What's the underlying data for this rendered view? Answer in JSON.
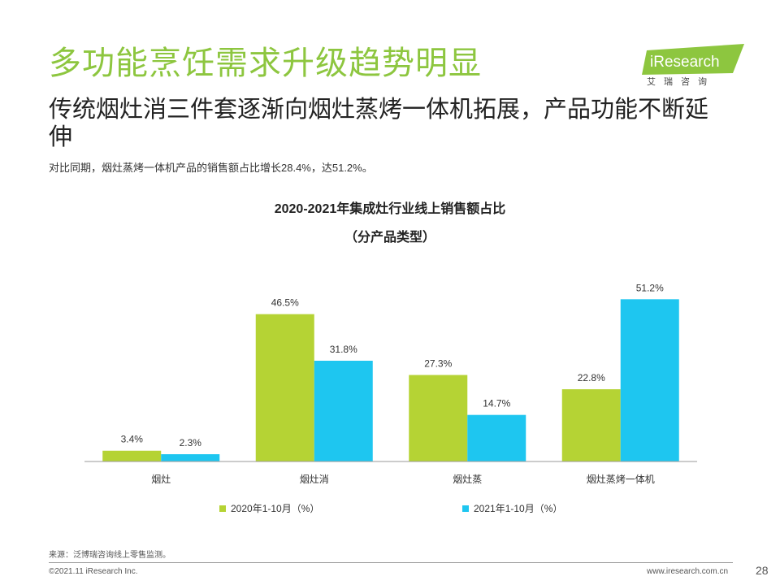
{
  "page": {
    "title": "多功能烹饪需求升级趋势明显",
    "subtitle": "传统烟灶消三件套逐渐向烟灶蒸烤一体机拓展，产品功能不断延伸",
    "description": "对比同期，烟灶蒸烤一体机产品的销售额占比增长28.4%，达51.2%。",
    "source": "来源：泛博瑞咨询线上零售监测。",
    "copyright": "©2021.11 iResearch Inc.",
    "website": "www.iresearch.com.cn",
    "page_number": "28"
  },
  "logo": {
    "brand": "iResearch",
    "tagline": "艾瑞咨询",
    "color": "#8dc63f"
  },
  "chart_data": {
    "type": "bar",
    "title": "2020-2021年集成灶行业线上销售额占比",
    "subtitle": "（分产品类型）",
    "categories": [
      "烟灶",
      "烟灶消",
      "烟灶蒸",
      "烟灶蒸烤一体机"
    ],
    "series": [
      {
        "name": "2020年1-10月（%）",
        "values": [
          3.4,
          46.5,
          27.3,
          22.8
        ],
        "labels": [
          "3.4%",
          "46.5%",
          "27.3%",
          "22.8%"
        ],
        "color": "#b5d334"
      },
      {
        "name": "2021年1-10月（%）",
        "values": [
          2.3,
          31.8,
          14.7,
          51.2
        ],
        "labels": [
          "2.3%",
          "31.8%",
          "14.7%",
          "51.2%"
        ],
        "color": "#1ec6f0"
      }
    ],
    "ylim": [
      0,
      60
    ],
    "legend_position": "bottom",
    "grid": false,
    "xlabel": "",
    "ylabel": ""
  }
}
